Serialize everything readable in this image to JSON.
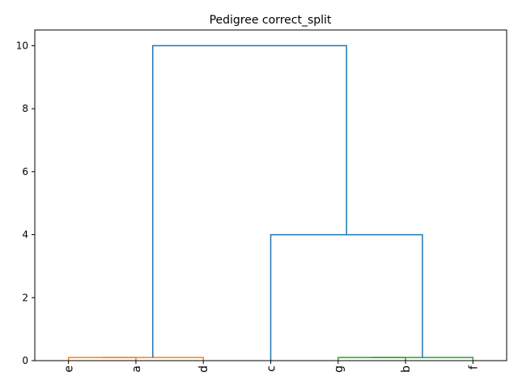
{
  "chart_data": {
    "type": "dendrogram",
    "title": "Pedigree correct_split",
    "xlabel": "",
    "ylabel": "",
    "ylim": [
      0,
      10.5
    ],
    "yticks": [
      0,
      2,
      4,
      6,
      8,
      10
    ],
    "leaves": [
      "e",
      "a",
      "d",
      "c",
      "g",
      "b",
      "f"
    ],
    "grid": false,
    "links": [
      {
        "from": [
          "e",
          "a"
        ],
        "height": 0.1,
        "color": "#ff7f0e"
      },
      {
        "from": [
          "e+a",
          "d"
        ],
        "height": 0.1,
        "color": "#ff7f0e"
      },
      {
        "from": [
          "g",
          "b"
        ],
        "height": 0.1,
        "color": "#2ca02c"
      },
      {
        "from": [
          "g+b",
          "f"
        ],
        "height": 0.1,
        "color": "#2ca02c"
      },
      {
        "from": [
          "c",
          "g+b+f"
        ],
        "height": 4,
        "color": "#1f77b4"
      },
      {
        "from": [
          "e+a+d",
          "c+g+b+f"
        ],
        "height": 10,
        "color": "#1f77b4"
      }
    ]
  }
}
